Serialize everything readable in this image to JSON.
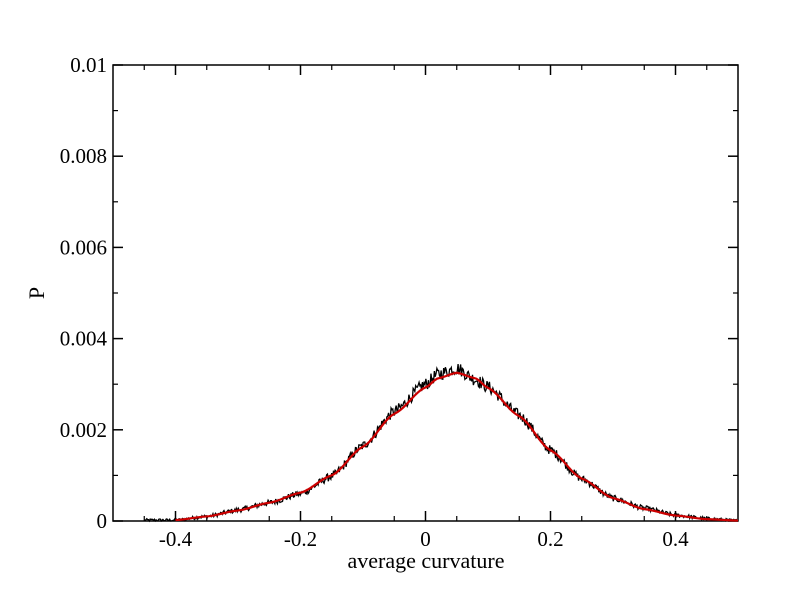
{
  "chart_data": {
    "type": "line",
    "title": "",
    "xlabel": "average curvature",
    "ylabel": "P",
    "xlim": [
      -0.5,
      0.5
    ],
    "ylim": [
      0,
      0.01
    ],
    "x_ticks": [
      -0.4,
      -0.2,
      0,
      0.2,
      0.4
    ],
    "x_tick_labels": [
      "-0.4",
      "-0.2",
      "0",
      "0.2",
      "0.4"
    ],
    "y_ticks": [
      0,
      0.002,
      0.004,
      0.006,
      0.008,
      0.01
    ],
    "y_tick_labels": [
      "0",
      "0.002",
      "0.004",
      "0.006",
      "0.008",
      "0.01"
    ],
    "grid": false,
    "legend": "none",
    "series": [
      {
        "color": "#000000",
        "style": "noisy histogram",
        "x": [
          -0.4,
          -0.35,
          -0.3,
          -0.25,
          -0.2,
          -0.15,
          -0.1,
          -0.05,
          0.0,
          0.02,
          0.05,
          0.08,
          0.1,
          0.15,
          0.2,
          0.25,
          0.3,
          0.35,
          0.4,
          0.45,
          0.5
        ],
        "y": [
          2e-05,
          0.0001,
          0.00024,
          0.0004,
          0.0006,
          0.00098,
          0.00165,
          0.0024,
          0.003,
          0.00322,
          0.00335,
          0.0031,
          0.00294,
          0.00232,
          0.00155,
          0.00092,
          0.0005,
          0.00028,
          0.00013,
          5e-05,
          1e-05
        ]
      },
      {
        "color": "#cc0000",
        "style": "smooth fit",
        "x": [
          -0.4,
          -0.35,
          -0.3,
          -0.25,
          -0.2,
          -0.15,
          -0.1,
          -0.05,
          0.0,
          0.02,
          0.05,
          0.08,
          0.1,
          0.15,
          0.2,
          0.25,
          0.3,
          0.35,
          0.4,
          0.45,
          0.5
        ],
        "y": [
          2e-05,
          0.0001,
          0.00023,
          0.0004,
          0.00062,
          0.001,
          0.00163,
          0.00235,
          0.00293,
          0.00313,
          0.00325,
          0.00313,
          0.00292,
          0.0023,
          0.00155,
          0.00093,
          0.0005,
          0.00026,
          0.00012,
          4e-05,
          1e-05
        ]
      }
    ]
  }
}
